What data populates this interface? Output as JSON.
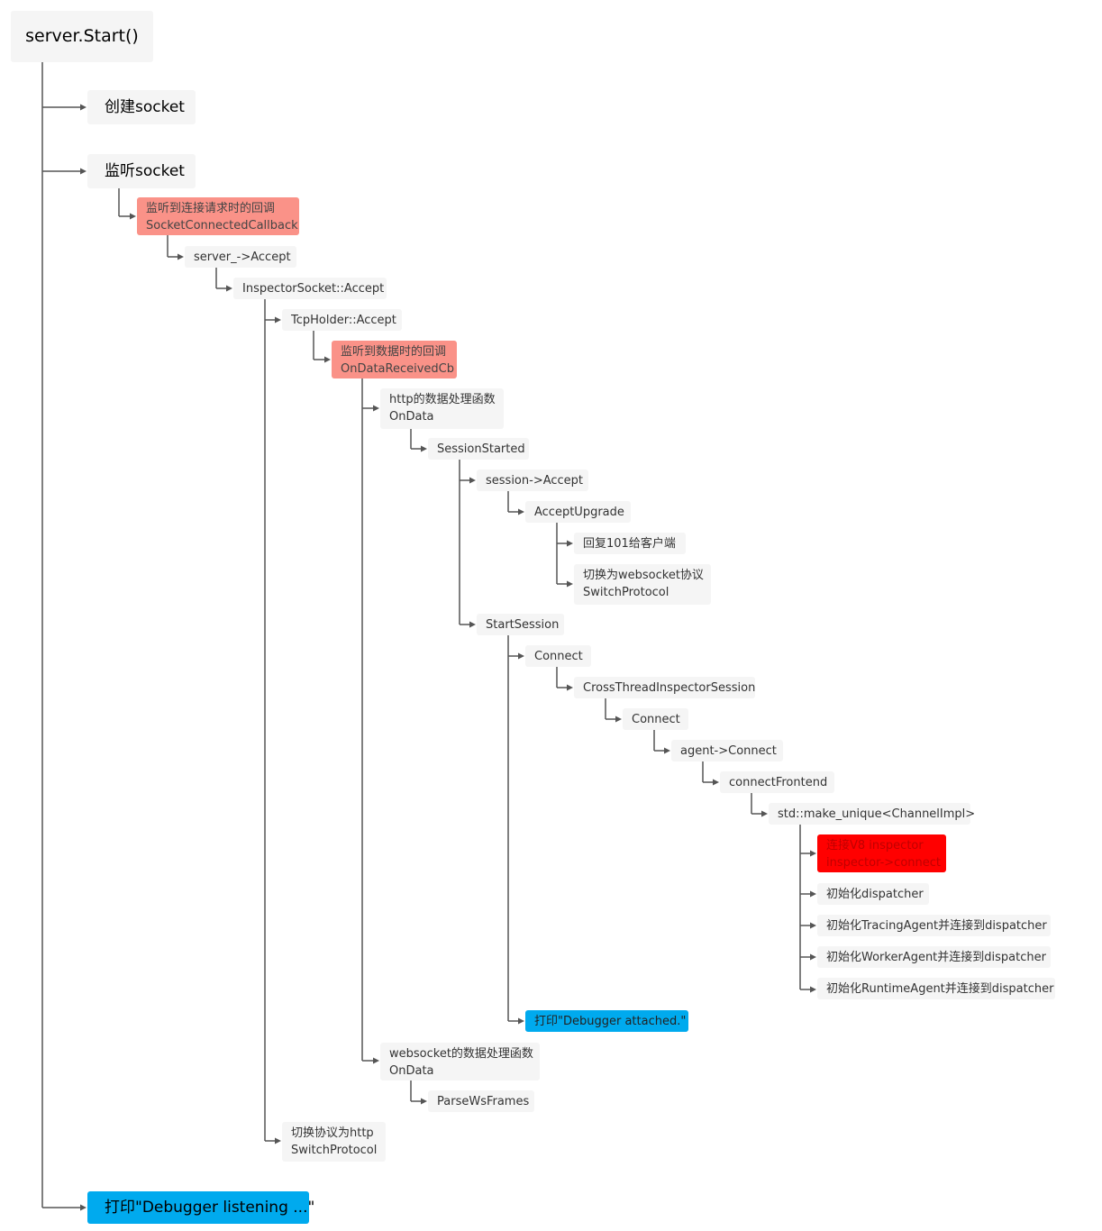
{
  "colors": {
    "default_node": "#f5f5f5",
    "callback_highlight": "#fa9288",
    "critical_highlight": "#ff0000",
    "print_highlight": "#00aaee",
    "connector": "#555555"
  },
  "nodes": {
    "root": "server.Start()",
    "create_socket": "创建socket",
    "listen_socket": "监听socket",
    "conn_cb": [
      "监听到连接请求时的回调",
      "SocketConnectedCallback"
    ],
    "server_accept": "server_->Accept",
    "inspector_socket_accept": "InspectorSocket::Accept",
    "tcpholder_accept": "TcpHolder::Accept",
    "data_cb": [
      "监听到数据时的回调",
      "OnDataReceivedCb"
    ],
    "http_ondata": [
      "http的数据处理函数",
      "OnData"
    ],
    "session_started": "SessionStarted",
    "session_accept": "session->Accept",
    "accept_upgrade": "AcceptUpgrade",
    "reply_101": "回复101给客户端",
    "switch_ws": [
      "切换为websocket协议",
      "SwitchProtocol"
    ],
    "start_session": "StartSession",
    "connect1": "Connect",
    "cross_thread": "CrossThreadInspectorSession",
    "connect2": "Connect",
    "agent_connect": "agent->Connect",
    "connect_frontend": "connectFrontend",
    "make_unique": "std::make_unique<ChannelImpl>",
    "v8_connect": [
      "连接V8 inspector",
      "inspector->connect"
    ],
    "init_dispatcher": "初始化dispatcher",
    "init_tracing": "初始化TracingAgent并连接到dispatcher",
    "init_worker": "初始化WorkerAgent并连接到dispatcher",
    "init_runtime": "初始化RuntimeAgent并连接到dispatcher",
    "print_attached": "打印\"Debugger attached.\"",
    "ws_ondata": [
      "websocket的数据处理函数",
      "OnData"
    ],
    "parse_ws": "ParseWsFrames",
    "switch_http": [
      "切换协议为http",
      "SwitchProtocol"
    ],
    "print_listening": "打印\"Debugger listening ...\""
  }
}
